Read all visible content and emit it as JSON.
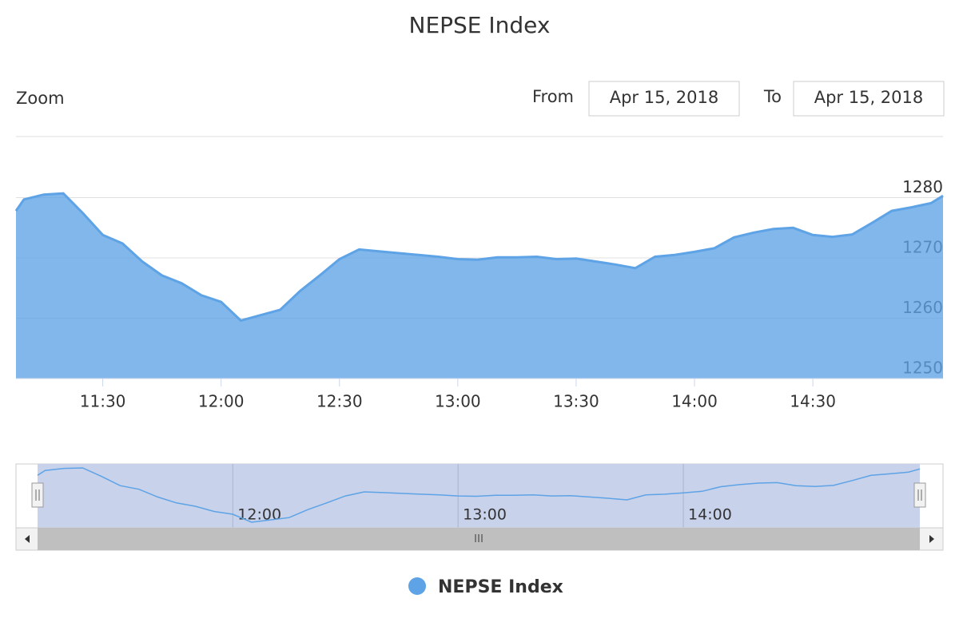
{
  "chart_data": {
    "type": "area",
    "title": "NEPSE Index",
    "range_selector": {
      "zoom_label": "Zoom",
      "from_label": "From",
      "from": "Apr 15, 2018",
      "to_label": "To",
      "to": "Apr 15, 2018"
    },
    "x": [
      "11:08",
      "11:10",
      "11:15",
      "11:20",
      "11:25",
      "11:30",
      "11:35",
      "11:40",
      "11:45",
      "11:50",
      "11:55",
      "12:00",
      "12:05",
      "12:10",
      "12:15",
      "12:20",
      "12:25",
      "12:30",
      "12:35",
      "12:40",
      "12:45",
      "12:50",
      "12:55",
      "13:00",
      "13:05",
      "13:10",
      "13:15",
      "13:20",
      "13:25",
      "13:30",
      "13:35",
      "13:40",
      "13:45",
      "13:50",
      "13:55",
      "14:00",
      "14:05",
      "14:10",
      "14:15",
      "14:20",
      "14:25",
      "14:30",
      "14:35",
      "14:40",
      "14:45",
      "14:50",
      "14:55",
      "15:00",
      "15:03"
    ],
    "series": [
      {
        "name": "NEPSE Index",
        "color": "#5ea3e6",
        "values": [
          1277.8,
          1279.7,
          1280.5,
          1280.7,
          1277.4,
          1273.8,
          1272.4,
          1269.4,
          1267.1,
          1265.8,
          1263.8,
          1262.7,
          1259.6,
          1260.5,
          1261.4,
          1264.5,
          1267.1,
          1269.8,
          1271.4,
          1271.1,
          1270.8,
          1270.5,
          1270.2,
          1269.8,
          1269.7,
          1270.1,
          1270.1,
          1270.2,
          1269.8,
          1269.9,
          1269.4,
          1268.9,
          1268.3,
          1270.2,
          1270.5,
          1271.0,
          1271.6,
          1273.4,
          1274.2,
          1274.8,
          1275.0,
          1273.8,
          1273.5,
          1273.9,
          1275.8,
          1277.8,
          1278.4,
          1279.1,
          1280.3
        ]
      }
    ],
    "xlim": [
      "11:08",
      "15:03"
    ],
    "xticks": [
      "11:30",
      "12:00",
      "12:30",
      "13:00",
      "13:30",
      "14:00",
      "14:30"
    ],
    "ylim": [
      1250,
      1290
    ],
    "yticks": [
      1250,
      1260,
      1270,
      1280
    ],
    "grid": true,
    "navigator": {
      "xticks": [
        "12:00",
        "13:00",
        "14:00"
      ]
    }
  }
}
